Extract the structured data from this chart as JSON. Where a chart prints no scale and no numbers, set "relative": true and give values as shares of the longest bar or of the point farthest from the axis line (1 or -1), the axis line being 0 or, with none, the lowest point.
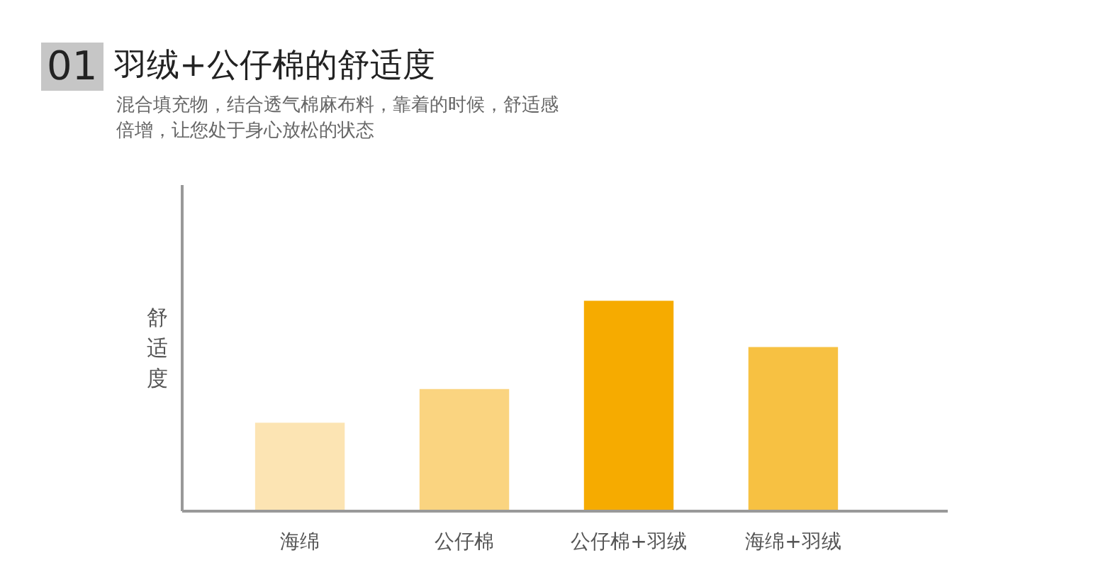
{
  "chart_data": {
    "type": "bar",
    "relative": true,
    "title": "羽绒+公仔棉的舒适度",
    "subtitle": "混合填充物，结合透气棉麻布料，靠着的时候，舒适感倍增，让您处于身心放松的状态",
    "ylabel": "舒适度",
    "annotations": [
      "01"
    ],
    "categories": [
      "海绵",
      "公仔棉",
      "公仔棉+羽绒",
      "海绵+羽绒"
    ],
    "values": [
      0.42,
      0.58,
      1,
      0.78
    ],
    "colors": [
      "#fce4b3",
      "#fad480",
      "#f6ab00",
      "#f7c142"
    ],
    "grid": false
  }
}
